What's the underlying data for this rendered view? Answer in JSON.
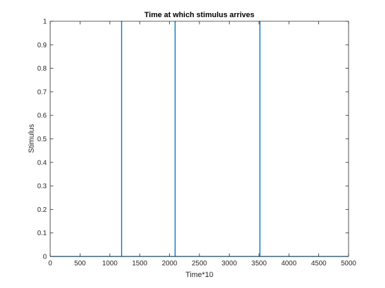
{
  "chart_data": {
    "type": "line",
    "title": "Time at which stimulus arrives",
    "xlabel": "Time*10",
    "ylabel": "Stimulus",
    "xlim": [
      0,
      5000
    ],
    "ylim": [
      0,
      1
    ],
    "xticks": [
      0,
      500,
      1000,
      1500,
      2000,
      2500,
      3000,
      3500,
      4000,
      4500,
      5000
    ],
    "yticks": [
      0,
      0.1,
      0.2,
      0.3,
      0.4,
      0.5,
      0.6,
      0.7,
      0.8,
      0.9,
      1
    ],
    "grid": false,
    "series": [
      {
        "color": "#0072BD",
        "x": [
          0,
          1195,
          1195,
          1197,
          1197,
          2092,
          2092,
          2094,
          2094,
          3513,
          3513,
          3515,
          3515,
          5000
        ],
        "y": [
          0,
          0,
          1,
          1,
          0,
          0,
          1,
          1,
          0,
          0,
          1,
          1,
          0,
          0
        ]
      }
    ]
  }
}
